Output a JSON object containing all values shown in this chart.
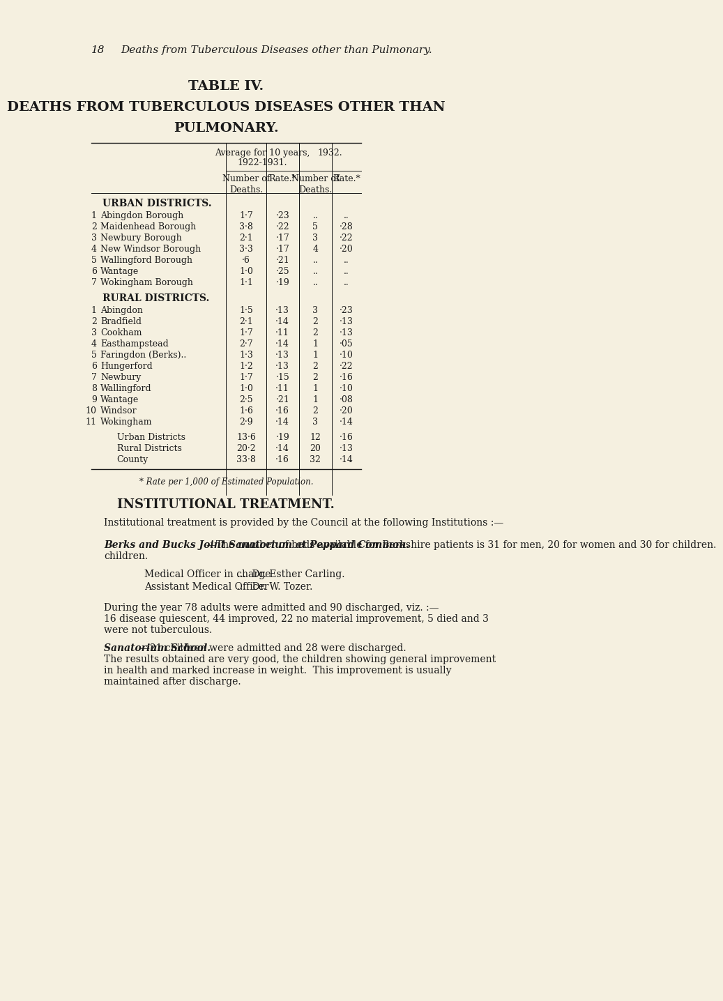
{
  "bg_color": "#f5f0e0",
  "text_color": "#1a1a1a",
  "page_number": "18",
  "page_header": "Deaths from Tuberculous Diseases other than Pulmonary.",
  "table_title_1": "TABLE IV.",
  "table_title_2": "DEATHS FROM TUBERCULOUS DISEASES OTHER THAN",
  "table_title_3": "PULMONARY.",
  "col_header_1": "Average for 10 years,",
  "col_header_1b": "1922-1931.",
  "col_header_2": "1932.",
  "col_sub_1": "Number of\nDeaths.",
  "col_sub_2": "Rate.*",
  "col_sub_3": "Number of\nDeaths.",
  "col_sub_4": "Rate.*",
  "urban_header": "URBAN DISTRICTS.",
  "urban_rows": [
    {
      "num": "1",
      "name": "Abingdon Borough",
      "avg_deaths": "1·7",
      "avg_rate": "·23",
      "deaths_1932": "..",
      "rate_1932": ".."
    },
    {
      "num": "2",
      "name": "Maidenhead Borough",
      "avg_deaths": "3·8",
      "avg_rate": "·22",
      "deaths_1932": "5",
      "rate_1932": "·28"
    },
    {
      "num": "3",
      "name": "Newbury Borough",
      "avg_deaths": "2·1",
      "avg_rate": "·17",
      "deaths_1932": "3",
      "rate_1932": "·22"
    },
    {
      "num": "4",
      "name": "New Windsor Borough",
      "avg_deaths": "3·3",
      "avg_rate": "·17",
      "deaths_1932": "4",
      "rate_1932": "·20"
    },
    {
      "num": "5",
      "name": "Wallingford Borough",
      "avg_deaths": "·6",
      "avg_rate": "·21",
      "deaths_1932": "..",
      "rate_1932": ".."
    },
    {
      "num": "6",
      "name": "Wantage",
      "avg_deaths": "1·0",
      "avg_rate": "·25",
      "deaths_1932": "..",
      "rate_1932": ".."
    },
    {
      "num": "7",
      "name": "Wokingham Borough",
      "avg_deaths": "1·1",
      "avg_rate": "·19",
      "deaths_1932": "..",
      "rate_1932": ".."
    }
  ],
  "rural_header": "RURAL DISTRICTS.",
  "rural_rows": [
    {
      "num": "1",
      "name": "Abingdon",
      "avg_deaths": "1·5",
      "avg_rate": "·13",
      "deaths_1932": "3",
      "rate_1932": "·23"
    },
    {
      "num": "2",
      "name": "Bradfield",
      "avg_deaths": "2·1",
      "avg_rate": "·14",
      "deaths_1932": "2",
      "rate_1932": "·13"
    },
    {
      "num": "3",
      "name": "Cookham",
      "avg_deaths": "1·7",
      "avg_rate": "·11",
      "deaths_1932": "2",
      "rate_1932": "·13"
    },
    {
      "num": "4",
      "name": "Easthampstead",
      "avg_deaths": "2·7",
      "avg_rate": "·14",
      "deaths_1932": "1",
      "rate_1932": "·05"
    },
    {
      "num": "5",
      "name": "Faringdon (Berks)..",
      "avg_deaths": "1·3",
      "avg_rate": "·13",
      "deaths_1932": "1",
      "rate_1932": "·10"
    },
    {
      "num": "6",
      "name": "Hungerford",
      "avg_deaths": "1·2",
      "avg_rate": "·13",
      "deaths_1932": "2",
      "rate_1932": "·22"
    },
    {
      "num": "7",
      "name": "Newbury",
      "avg_deaths": "1·7",
      "avg_rate": "·15",
      "deaths_1932": "2",
      "rate_1932": "·16"
    },
    {
      "num": "8",
      "name": "Wallingford",
      "avg_deaths": "1·0",
      "avg_rate": "·11",
      "deaths_1932": "1",
      "rate_1932": "·10"
    },
    {
      "num": "9",
      "name": "Wantage",
      "avg_deaths": "2·5",
      "avg_rate": "·21",
      "deaths_1932": "1",
      "rate_1932": "·08"
    },
    {
      "num": "10",
      "name": "Windsor",
      "avg_deaths": "1·6",
      "avg_rate": "·16",
      "deaths_1932": "2",
      "rate_1932": "·20"
    },
    {
      "num": "11",
      "name": "Wokingham",
      "avg_deaths": "2·9",
      "avg_rate": "·14",
      "deaths_1932": "3",
      "rate_1932": "·14"
    }
  ],
  "summary_rows": [
    {
      "name": "Urban Districts",
      "avg_deaths": "13·6",
      "avg_rate": "·19",
      "deaths_1932": "12",
      "rate_1932": "·16"
    },
    {
      "name": "Rural Districts",
      "avg_deaths": "20·2",
      "avg_rate": "·14",
      "deaths_1932": "20",
      "rate_1932": "·13"
    },
    {
      "name": "County",
      "avg_deaths": "33·8",
      "avg_rate": "·16",
      "deaths_1932": "32",
      "rate_1932": "·14"
    }
  ],
  "footnote": "* Rate per 1,000 of Estimated Population.",
  "section_title": "INSTITUTIONAL TREATMENT.",
  "para1": "Institutional treatment is provided by the Council at the following Institutions :—",
  "para2_italic": "Berks and Bucks Joint Sanatorium at Peppard Common.",
  "para2_normal": "—The number of beds available for Berkshire patients is 31 for men, 20 for women and 30 for children.",
  "officer1_label": "Medical Officer in charge",
  "officer1_value": "...  Dr. Esther Carling.",
  "officer2_label": "Assistant Medical Officer",
  "officer2_value": "...  Dr. W. Tozer.",
  "para3": "During the year 78 adults were admitted and 90 discharged, viz. :—\n16 disease quiescent, 44 improved, 22 no material improvement, 5 died and 3\nwere not tuberculous.",
  "para4_italic": "Sanatorium School.",
  "para4_normal": "—21 children were admitted and 28 were discharged.\nThe results obtained are very good, the children showing general improvement\nin health and marked increase in weight.  This improvement is usually\nmaintained after discharge."
}
